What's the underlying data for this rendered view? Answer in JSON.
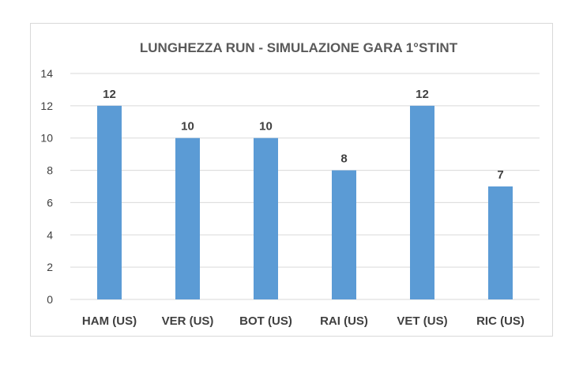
{
  "chart_data": {
    "type": "bar",
    "title": "LUNGHEZZA RUN - SIMULAZIONE GARA 1°STINT",
    "categories": [
      "HAM (US)",
      "VER (US)",
      "BOT (US)",
      "RAI (US)",
      "VET (US)",
      "RIC (US)"
    ],
    "values": [
      12,
      10,
      10,
      8,
      12,
      7
    ],
    "data_labels": [
      "12",
      "10",
      "10",
      "8",
      "12",
      "7"
    ],
    "y_ticks": [
      "0",
      "2",
      "4",
      "6",
      "8",
      "10",
      "12",
      "14"
    ],
    "ylim": [
      0,
      14
    ],
    "grid": true,
    "legend": "none",
    "bar_color": "#5b9bd5"
  }
}
